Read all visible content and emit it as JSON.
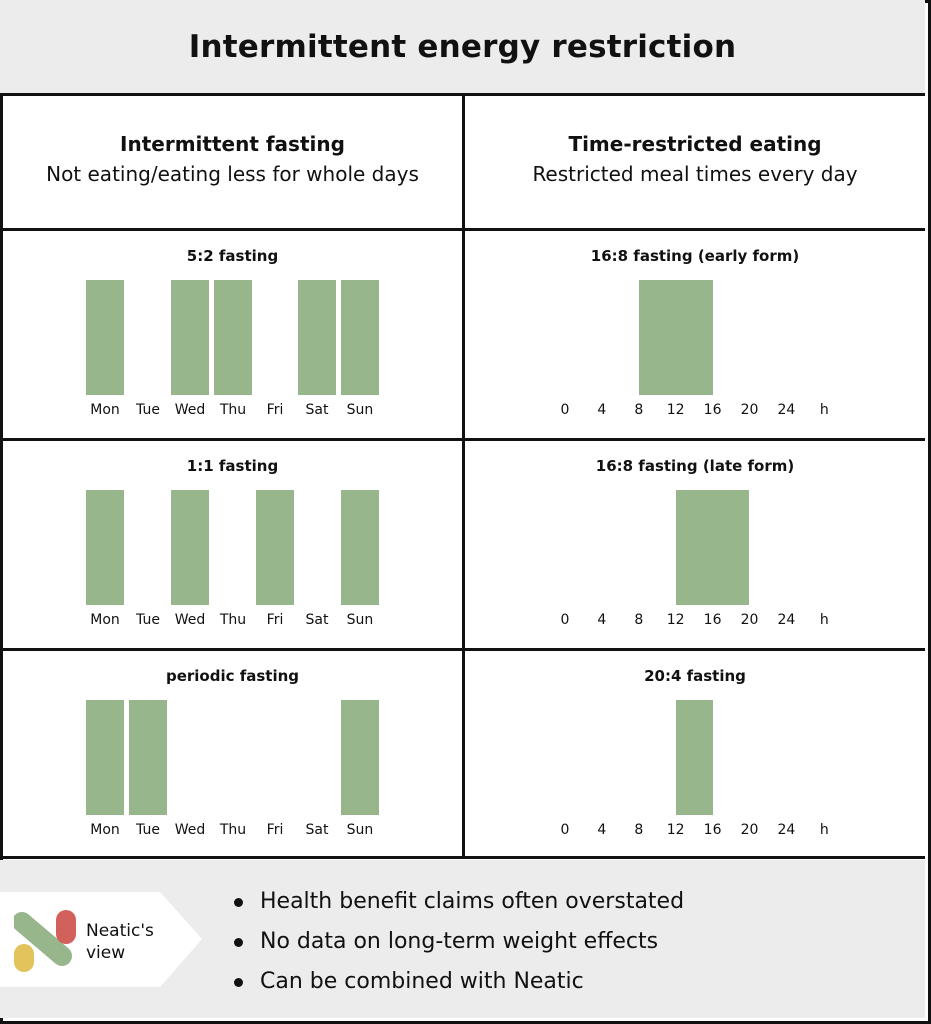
{
  "title": "Intermittent energy restriction",
  "columns": {
    "left": {
      "title": "Intermittent fasting",
      "subtitle": "Not eating/eating less for whole days"
    },
    "right": {
      "title": "Time-restricted eating",
      "subtitle": "Restricted meal times every day"
    }
  },
  "colors": {
    "bar": "#98b68c",
    "header_bg": "#ececec"
  },
  "chart_data": [
    {
      "type": "bar",
      "title": "5:2 fasting",
      "categories": [
        "Mon",
        "Tue",
        "Wed",
        "Thu",
        "Fri",
        "Sat",
        "Sun"
      ],
      "values": [
        1,
        0,
        1,
        1,
        0,
        1,
        1
      ]
    },
    {
      "type": "bar",
      "title": "1:1 fasting",
      "categories": [
        "Mon",
        "Tue",
        "Wed",
        "Thu",
        "Fri",
        "Sat",
        "Sun"
      ],
      "values": [
        1,
        0,
        1,
        0,
        1,
        0,
        1
      ]
    },
    {
      "type": "bar",
      "title": "periodic fasting",
      "categories": [
        "Mon",
        "Tue",
        "Wed",
        "Thu",
        "Fri",
        "Sat",
        "Sun"
      ],
      "values": [
        1,
        1,
        0,
        0,
        0,
        0,
        1
      ]
    },
    {
      "type": "bar",
      "title": "16:8 fasting (early form)",
      "x_ticks": [
        "0",
        "4",
        "8",
        "12",
        "16",
        "20",
        "24",
        "h"
      ],
      "eating_window": [
        8,
        16
      ]
    },
    {
      "type": "bar",
      "title": "16:8 fasting (late form)",
      "x_ticks": [
        "0",
        "4",
        "8",
        "12",
        "16",
        "20",
        "24",
        "h"
      ],
      "eating_window": [
        12,
        20
      ]
    },
    {
      "type": "bar",
      "title": "20:4  fasting",
      "x_ticks": [
        "0",
        "4",
        "8",
        "12",
        "16",
        "20",
        "24",
        "h"
      ],
      "eating_window": [
        12,
        16
      ]
    }
  ],
  "footer": {
    "badge_line1": "Neatic's",
    "badge_line2": "view",
    "bullets": [
      "Health benefit claims often overstated",
      "No data on long-term weight effects",
      "Can be combined with Neatic"
    ]
  }
}
